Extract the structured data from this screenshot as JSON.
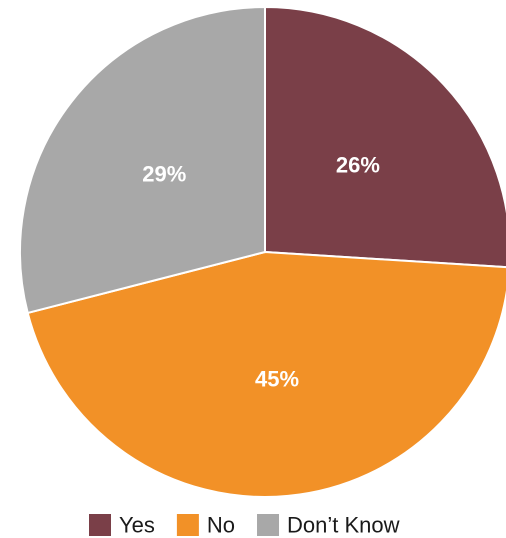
{
  "chart_data": {
    "type": "pie",
    "slices": [
      {
        "label": "Yes",
        "value": 26,
        "display": "26%",
        "color": "#7a3f48"
      },
      {
        "label": "No",
        "value": 45,
        "display": "45%",
        "color": "#f29127"
      },
      {
        "label": "Don’t Know",
        "value": 29,
        "display": "29%",
        "color": "#a8a8a8"
      }
    ],
    "legend": {
      "placement": "bottom-right",
      "entries": [
        "Yes",
        "No",
        "Don’t Know"
      ]
    }
  }
}
